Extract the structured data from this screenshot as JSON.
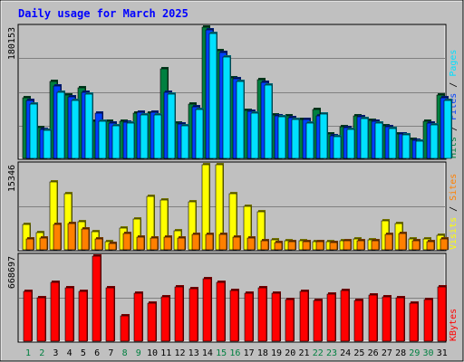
{
  "title": "Daily usage for March 2025",
  "colors": {
    "background": "#c0c0c0",
    "plot": "#c0c0c0",
    "title": "#0000ff",
    "hits": "#008040",
    "files": "#0040ff",
    "pages": "#00e0ff",
    "visits": "#ffff00",
    "sites": "#ff8000",
    "kbytes": "#ff0000",
    "weekday_label": "#000000",
    "weekend_label": "#008040"
  },
  "chart_data": [
    {
      "type": "bar",
      "name": "usage",
      "categories": [
        "1",
        "2",
        "3",
        "4",
        "5",
        "6",
        "7",
        "8",
        "9",
        "10",
        "11",
        "12",
        "13",
        "14",
        "15",
        "16",
        "17",
        "18",
        "19",
        "20",
        "21",
        "22",
        "23",
        "24",
        "25",
        "26",
        "27",
        "28",
        "29",
        "30",
        "31"
      ],
      "weekend_days": [
        "1",
        "2",
        "8",
        "9",
        "15",
        "16",
        "22",
        "23",
        "29",
        "30"
      ],
      "ymax_label": "180153",
      "ylim": [
        0,
        180153
      ],
      "legend": [
        {
          "text": "Hits",
          "key": "hits"
        },
        {
          "text": "Files",
          "key": "files"
        },
        {
          "text": "Pages",
          "key": "pages"
        }
      ],
      "series": [
        {
          "name": "Hits",
          "key": "hits",
          "values": [
            83000,
            42000,
            105000,
            87000,
            97000,
            51000,
            51000,
            51000,
            62000,
            62000,
            123000,
            49000,
            74000,
            180153,
            148000,
            111000,
            66000,
            108000,
            60000,
            59000,
            54000,
            67000,
            33000,
            44000,
            59000,
            52000,
            45000,
            34000,
            26000,
            51000,
            87000
          ]
        },
        {
          "name": "Files",
          "key": "files",
          "values": [
            80000,
            40000,
            99000,
            85000,
            91000,
            62000,
            49000,
            50000,
            63000,
            63000,
            91000,
            47000,
            71000,
            176000,
            145000,
            109000,
            65000,
            104000,
            58000,
            56000,
            53000,
            59000,
            31000,
            42000,
            57000,
            51000,
            44000,
            33000,
            25000,
            49000,
            83000
          ]
        },
        {
          "name": "Pages",
          "key": "pages",
          "values": [
            75000,
            38000,
            91000,
            79000,
            88000,
            51000,
            45000,
            48000,
            60000,
            60000,
            88000,
            45000,
            67000,
            172000,
            139000,
            105000,
            62000,
            101000,
            57000,
            54000,
            49000,
            61000,
            30000,
            40000,
            55000,
            48000,
            41000,
            32000,
            23000,
            46000,
            79000
          ]
        }
      ]
    },
    {
      "type": "bar",
      "name": "visits",
      "categories": [
        "1",
        "2",
        "3",
        "4",
        "5",
        "6",
        "7",
        "8",
        "9",
        "10",
        "11",
        "12",
        "13",
        "14",
        "15",
        "16",
        "17",
        "18",
        "19",
        "20",
        "21",
        "22",
        "23",
        "24",
        "25",
        "26",
        "27",
        "28",
        "29",
        "30",
        "31"
      ],
      "ymax_label": "15346",
      "ylim": [
        0,
        15346
      ],
      "legend": [
        {
          "text": "Visits",
          "key": "visits"
        },
        {
          "text": "Sites",
          "key": "sites"
        }
      ],
      "series": [
        {
          "name": "Visits",
          "key": "visits",
          "values": [
            4600,
            3100,
            12300,
            10200,
            5000,
            3300,
            1400,
            3900,
            5600,
            9600,
            9000,
            3400,
            8600,
            15346,
            15346,
            10200,
            7900,
            6800,
            1800,
            1600,
            1600,
            1400,
            1400,
            1600,
            1900,
            1800,
            5200,
            4700,
            1900,
            1900,
            2600
          ]
        },
        {
          "name": "Sites",
          "key": "sites",
          "values": [
            1900,
            2100,
            4500,
            4700,
            3700,
            1900,
            1200,
            3000,
            2300,
            2200,
            2300,
            2100,
            2800,
            2800,
            2700,
            2300,
            2200,
            1700,
            1300,
            1400,
            1400,
            1400,
            1300,
            1600,
            1600,
            1700,
            2800,
            3000,
            1700,
            1500,
            1900
          ]
        }
      ]
    },
    {
      "type": "bar",
      "name": "kbytes",
      "categories": [
        "1",
        "2",
        "3",
        "4",
        "5",
        "6",
        "7",
        "8",
        "9",
        "10",
        "11",
        "12",
        "13",
        "14",
        "15",
        "16",
        "17",
        "18",
        "19",
        "20",
        "21",
        "22",
        "23",
        "24",
        "25",
        "26",
        "27",
        "28",
        "29",
        "30",
        "31"
      ],
      "ymax_label": "668697",
      "ylim": [
        0,
        668697
      ],
      "legend": [
        {
          "text": "KBytes",
          "key": "kbytes"
        }
      ],
      "series": [
        {
          "name": "KBytes",
          "key": "kbytes",
          "values": [
            390000,
            340000,
            460000,
            420000,
            390000,
            668697,
            420000,
            200000,
            380000,
            300000,
            350000,
            430000,
            410000,
            490000,
            460000,
            400000,
            380000,
            420000,
            380000,
            330000,
            390000,
            320000,
            370000,
            400000,
            320000,
            360000,
            350000,
            340000,
            300000,
            330000,
            430000
          ]
        }
      ]
    }
  ]
}
